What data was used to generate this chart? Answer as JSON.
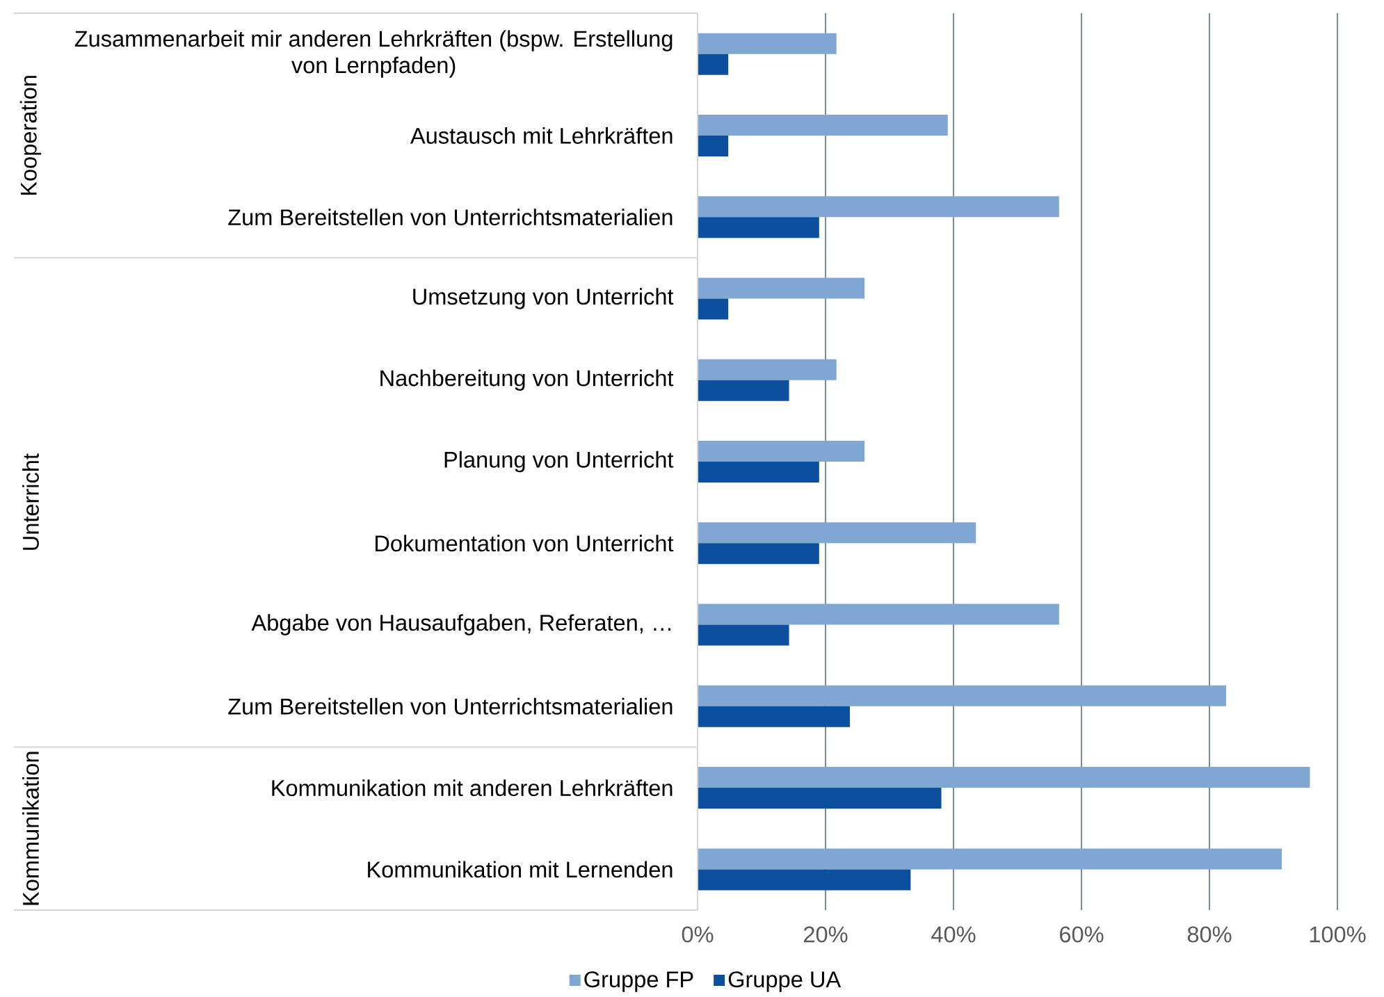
{
  "chart_data": {
    "type": "bar",
    "orientation": "horizontal",
    "categories": [
      "Zusammenarbeit mir anderen Lehrkräften (bspw. Erstellung von Lernpfaden)",
      "Austausch mit Lehrkräften",
      "Zum Bereitstellen von Unterrichtsmaterialien",
      "Umsetzung von Unterricht",
      "Nachbereitung von Unterricht",
      "Planung von Unterricht",
      "Dokumentation von Unterricht",
      "Abgabe von Hausaufgaben, Referaten, …",
      "Zum Bereitstellen von Unterrichtsmaterialien",
      "Kommunikation mit anderen Lehrkräften",
      "Kommunikation mit Lernenden"
    ],
    "series": [
      {
        "name": "Gruppe FP",
        "color": "#7fa7d1",
        "values": [
          21.7,
          39.1,
          56.5,
          26.1,
          21.7,
          26.1,
          43.5,
          56.5,
          82.6,
          95.7,
          91.3
        ]
      },
      {
        "name": "Gruppe UA",
        "color": "#0b4f9e",
        "values": [
          4.8,
          4.8,
          19.0,
          4.8,
          14.3,
          19.0,
          19.0,
          14.3,
          23.8,
          38.1,
          33.3
        ]
      }
    ],
    "xlim": [
      0,
      100
    ],
    "xticks": [
      {
        "value": 0,
        "label": "0%"
      },
      {
        "value": 20,
        "label": "20%"
      },
      {
        "value": 40,
        "label": "40%"
      },
      {
        "value": 60,
        "label": "60%"
      },
      {
        "value": 80,
        "label": "80%"
      },
      {
        "value": 100,
        "label": "100%"
      }
    ],
    "grid": "x",
    "legend": "bottom",
    "annotations": [
      "Kooperation",
      "Unterricht",
      "Kommunikation"
    ]
  }
}
